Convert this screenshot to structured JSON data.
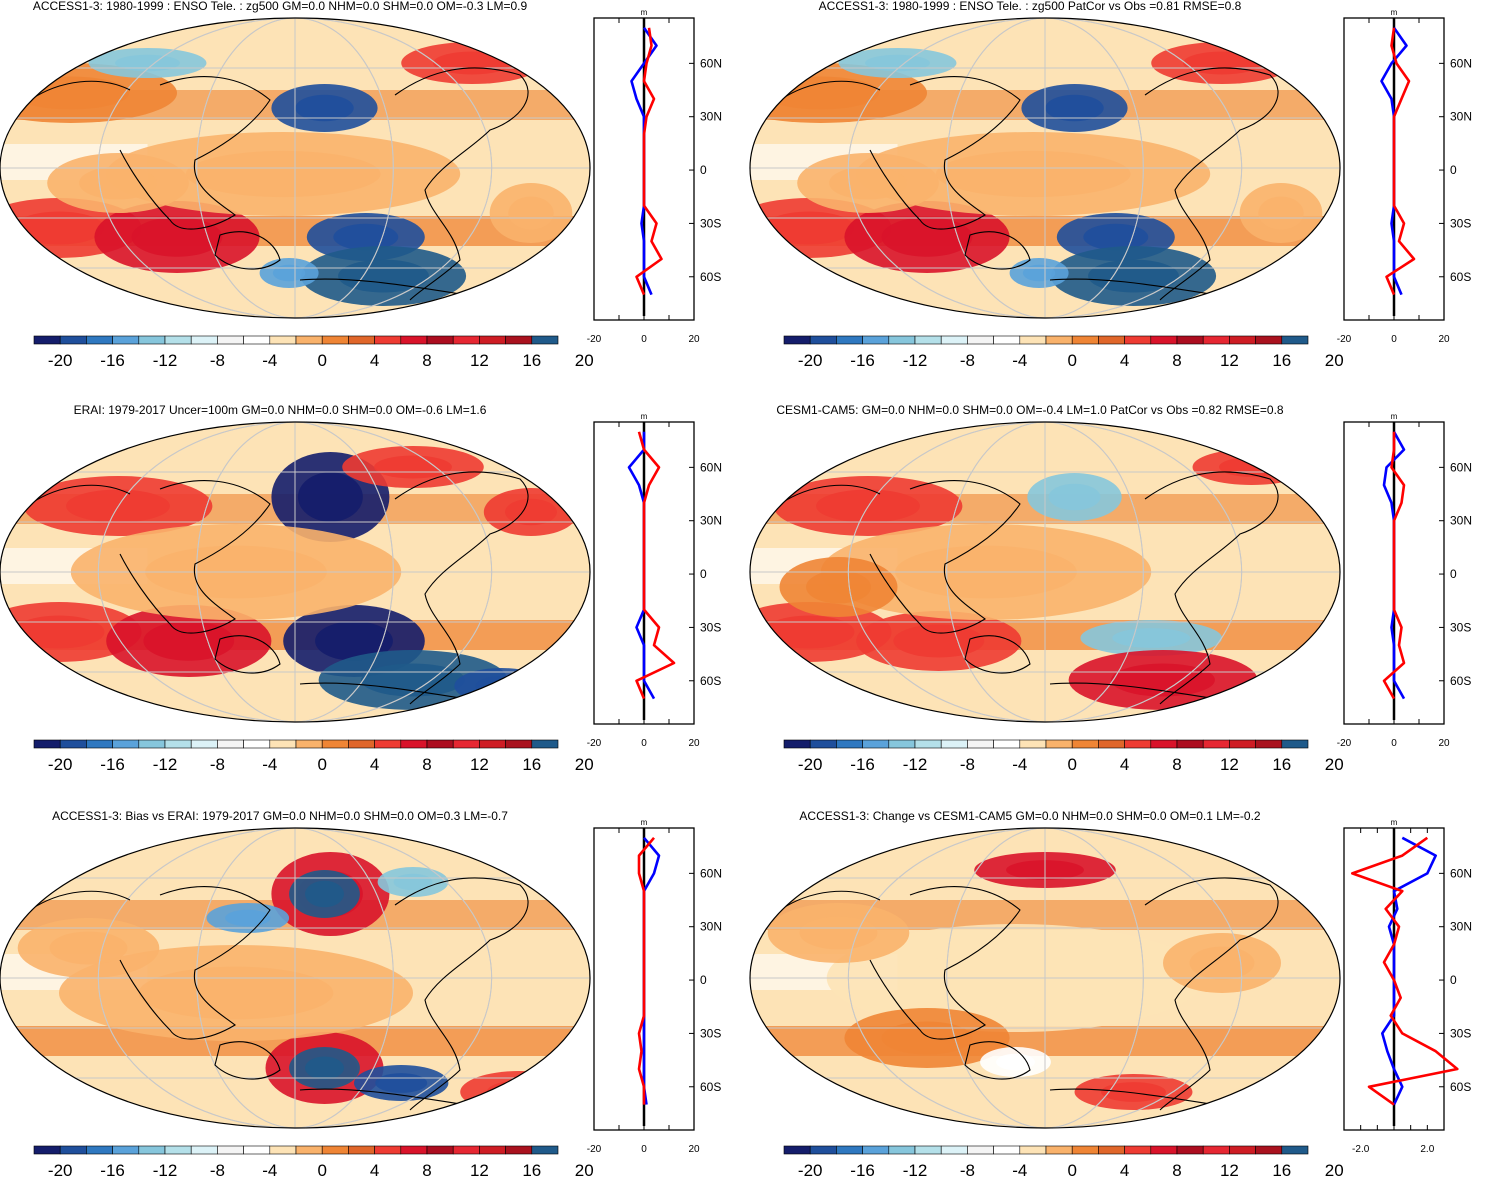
{
  "figure": {
    "description_variable": "zg500",
    "colormap": [
      "#141d6b",
      "#1f4f9c",
      "#2f78c0",
      "#5aa2da",
      "#86c6dc",
      "#b4e0e9",
      "#dcf2f7",
      "#f4f4f4",
      "#ffffff",
      "#fde3b6",
      "#f9b26b",
      "#ef8535",
      "#e0662a",
      "#ee3b32",
      "#d9132a",
      "#ac0d1f",
      "#e62732",
      "#ce1c24",
      "#a9121e",
      "#1f5a8a"
    ],
    "colorbar_labels": [
      "-20",
      "-16",
      "-12",
      "-8",
      "-4",
      "0",
      "4",
      "8",
      "12",
      "16",
      "20"
    ],
    "profile_units": "m",
    "lat_labels": [
      "60N",
      "30N",
      "0",
      "30S",
      "60S"
    ],
    "profile_line_colors": {
      "model": "#ff0000",
      "obs": "#0000ff",
      "zero": "#000000"
    }
  },
  "chart_data": [
    {
      "type": "heatmap",
      "title": "ACCESS1-3: 1980-1999 : ENSO Tele. : zg500 GM=0.0 NHM=0.0 SHM=0.0 OM=-0.3 LM=0.9",
      "clevels": [
        -20,
        -18,
        -16,
        -14,
        -12,
        -10,
        -8,
        -6,
        -4,
        -2,
        0,
        2,
        4,
        6,
        8,
        10,
        12,
        14,
        16,
        18,
        20
      ],
      "profile": {
        "xlim": [
          -20,
          20
        ],
        "xticklabels": [
          "-20",
          "0",
          "20"
        ],
        "units": "m",
        "lat": [
          80,
          70,
          60,
          50,
          40,
          30,
          20,
          10,
          0,
          -10,
          -20,
          -30,
          -40,
          -50,
          -60,
          -70
        ],
        "red": [
          2,
          3,
          1,
          0,
          4,
          1,
          0,
          0,
          0,
          0,
          0,
          5,
          3,
          7,
          -3,
          0
        ],
        "blue": [
          0,
          5,
          0,
          -5,
          -3,
          0,
          0,
          0,
          0,
          0,
          0,
          -1,
          0,
          0,
          0,
          3
        ]
      }
    },
    {
      "type": "heatmap",
      "title": "ACCESS1-3: 1980-1999 : ENSO Tele. : zg500 PatCor vs Obs =0.81 RMSE=0.8",
      "clevels": [
        -20,
        -18,
        -16,
        -14,
        -12,
        -10,
        -8,
        -6,
        -4,
        -2,
        0,
        2,
        4,
        6,
        8,
        10,
        12,
        14,
        16,
        18,
        20
      ],
      "profile": {
        "xlim": [
          -20,
          20
        ],
        "xticklabels": [
          "-20",
          "0",
          "20"
        ],
        "units": "m",
        "lat": [
          80,
          70,
          60,
          50,
          40,
          30,
          20,
          10,
          0,
          -10,
          -20,
          -30,
          -40,
          -50,
          -60,
          -70
        ],
        "red": [
          0,
          -1,
          1,
          6,
          3,
          0,
          0,
          0,
          0,
          0,
          0,
          4,
          2,
          8,
          -3,
          0
        ],
        "blue": [
          0,
          5,
          -1,
          -5,
          -1,
          0,
          0,
          0,
          0,
          0,
          0,
          -1,
          0,
          0,
          0,
          3
        ]
      }
    },
    {
      "type": "heatmap",
      "title": "ERAI: 1979-2017 Uncer=100m GM=0.0 NHM=0.0 SHM=0.0 OM=-0.6 LM=1.6",
      "clevels": [
        -20,
        -18,
        -16,
        -14,
        -12,
        -10,
        -8,
        -6,
        -4,
        -2,
        0,
        2,
        4,
        6,
        8,
        10,
        12,
        14,
        16,
        18,
        20
      ],
      "profile": {
        "xlim": [
          -20,
          20
        ],
        "xticklabels": [
          "-20",
          "0",
          "20"
        ],
        "units": "m",
        "lat": [
          80,
          70,
          60,
          50,
          40,
          30,
          20,
          10,
          0,
          -10,
          -20,
          -30,
          -40,
          -50,
          -60,
          -70
        ],
        "red": [
          -2,
          0,
          6,
          2,
          0,
          0,
          0,
          0,
          0,
          0,
          0,
          6,
          4,
          12,
          -3,
          0
        ],
        "blue": [
          0,
          0,
          -6,
          -2,
          0,
          0,
          0,
          0,
          0,
          0,
          0,
          -3,
          0,
          0,
          0,
          4
        ]
      }
    },
    {
      "type": "heatmap",
      "title": "CESM1-CAM5: GM=0.0 NHM=0.0 SHM=0.0 OM=-0.4 LM=1.0 PatCor vs Obs =0.82 RMSE=0.8",
      "clevels": [
        -20,
        -18,
        -16,
        -14,
        -12,
        -10,
        -8,
        -6,
        -4,
        -2,
        0,
        2,
        4,
        6,
        8,
        10,
        12,
        14,
        16,
        18,
        20
      ],
      "profile": {
        "xlim": [
          -20,
          20
        ],
        "xticklabels": [
          "-20",
          "0",
          "20"
        ],
        "units": "m",
        "lat": [
          80,
          70,
          60,
          50,
          40,
          30,
          20,
          10,
          0,
          -10,
          -20,
          -30,
          -40,
          -50,
          -60,
          -70
        ],
        "red": [
          0,
          0,
          -1,
          4,
          3,
          0,
          0,
          0,
          0,
          0,
          0,
          3,
          2,
          4,
          -4,
          0
        ],
        "blue": [
          0,
          4,
          -3,
          -4,
          -1,
          0,
          0,
          0,
          0,
          0,
          0,
          -1,
          0,
          0,
          0,
          4
        ]
      }
    },
    {
      "type": "heatmap",
      "title": "ACCESS1-3: Bias vs ERAI: 1979-2017 GM=0.0 NHM=0.0 SHM=0.0 OM=0.3 LM=-0.7",
      "clevels": [
        -20,
        -18,
        -16,
        -14,
        -12,
        -10,
        -8,
        -6,
        -4,
        -2,
        0,
        2,
        4,
        6,
        8,
        10,
        12,
        14,
        16,
        18,
        20
      ],
      "profile": {
        "xlim": [
          -20,
          20
        ],
        "xticklabels": [
          "-20",
          "0",
          "20"
        ],
        "units": "m",
        "lat": [
          80,
          70,
          60,
          50,
          40,
          30,
          20,
          10,
          0,
          -10,
          -20,
          -30,
          -40,
          -50,
          -60,
          -70
        ],
        "red": [
          4,
          -2,
          -2,
          0,
          0,
          0,
          0,
          0,
          0,
          0,
          0,
          -2,
          -1,
          -2,
          0,
          0
        ],
        "blue": [
          0,
          6,
          4,
          0,
          0,
          0,
          0,
          0,
          0,
          0,
          0,
          0,
          0,
          0,
          0,
          1
        ]
      }
    },
    {
      "type": "heatmap",
      "title": "ACCESS1-3: Change vs CESM1-CAM5 GM=0.0 NHM=0.0 SHM=0.0 OM=0.1 LM=-0.2",
      "clevels": [
        -20,
        -18,
        -16,
        -14,
        -12,
        -10,
        -8,
        -6,
        -4,
        -2,
        0,
        2,
        4,
        6,
        8,
        10,
        12,
        14,
        16,
        18,
        20
      ],
      "profile": {
        "xlim": [
          -3.0,
          3.0
        ],
        "xticklabels": [
          "-2.0",
          "2.0"
        ],
        "units": "m",
        "lat": [
          80,
          70,
          60,
          50,
          40,
          30,
          20,
          10,
          0,
          -10,
          -20,
          -30,
          -40,
          -50,
          -60,
          -70
        ],
        "red": [
          2.0,
          0.5,
          -2.5,
          0.5,
          -0.5,
          0.3,
          0,
          -0.6,
          0,
          0.4,
          -0.2,
          0.5,
          2.5,
          3.8,
          -1.5,
          0
        ],
        "blue": [
          0.5,
          2.5,
          2.0,
          0,
          0.2,
          -0.3,
          0,
          0,
          0,
          0,
          0,
          -0.7,
          -0.4,
          0,
          0.5,
          0
        ]
      }
    }
  ]
}
